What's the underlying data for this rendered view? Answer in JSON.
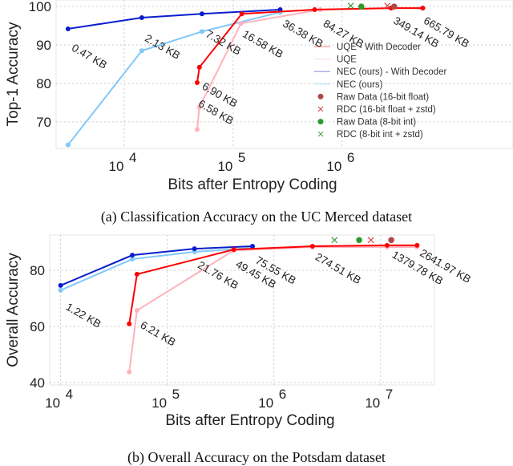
{
  "chart_data": [
    {
      "type": "line",
      "caption": "(a) Classification Accuracy on the UC Merced dataset",
      "xlabel": "Bits after Entropy Coding",
      "ylabel": "Top-1 Accuracy",
      "xscale": "log",
      "xlim": [
        2370,
        37000000
      ],
      "ylim": [
        63.1,
        101.7
      ],
      "xticks": [
        {
          "v": 10000,
          "label": "10",
          "exp": "4"
        },
        {
          "v": 100000,
          "label": "10",
          "exp": "5"
        },
        {
          "v": 1000000,
          "label": "10",
          "exp": "6"
        }
      ],
      "yticks": [
        70,
        80,
        90,
        100
      ],
      "grid": true,
      "legend_position": "right",
      "series": [
        {
          "name": "UQE - With Decoder",
          "color": "#ff0000",
          "x": [
            46700,
            49000,
            120000,
            560000,
            2800000,
            5500000
          ],
          "y": [
            80.2,
            84.2,
            98.1,
            99.2,
            99.6,
            99.6
          ]
        },
        {
          "name": "UQE",
          "color": "#ffb3bd",
          "x": [
            46700,
            49000,
            118000,
            630000,
            2850000,
            5400000
          ],
          "y": [
            68.0,
            73.8,
            95.6,
            99.2,
            99.6,
            99.6
          ]
        },
        {
          "name": "NEC (ours) - With Decoder",
          "color": "#0a1ecc",
          "x": [
            3050,
            14500,
            51700,
            270000
          ],
          "y": [
            94.2,
            97.1,
            98.1,
            99.2
          ]
        },
        {
          "name": "NEC (ours)",
          "color": "#7fc8f8",
          "x": [
            3050,
            14500,
            51700,
            270000
          ],
          "y": [
            64.0,
            88.5,
            93.5,
            98.5
          ]
        }
      ],
      "markers": [
        {
          "name": "Raw Data (16-bit float)",
          "shape": "dot",
          "color": "#b04848",
          "x": 3000000,
          "y": 100.0
        },
        {
          "name": "RDC (16-bit float + zstd)",
          "shape": "x",
          "color": "#d04848",
          "x": 2600000,
          "y": 100.2
        },
        {
          "name": "Raw Data (8-bit int)",
          "shape": "dot",
          "color": "#2e9a2e",
          "x": 1500000,
          "y": 100.0
        },
        {
          "name": "RDC (8-bit int + zstd)",
          "shape": "x",
          "color": "#3a9a3a",
          "x": 1200000,
          "y": 100.2
        }
      ],
      "annotations": [
        {
          "text": "0.47 KB",
          "x": 3240,
          "y": 90.8
        },
        {
          "text": "2.13 KB",
          "x": 15200,
          "y": 93.3
        },
        {
          "text": "7.32 KB",
          "x": 55000,
          "y": 94.4
        },
        {
          "text": "16.58 KB",
          "x": 120000,
          "y": 94.4
        },
        {
          "text": "36.38 KB",
          "x": 280000,
          "y": 97.1
        },
        {
          "text": "84.27 KB",
          "x": 660000,
          "y": 97.1
        },
        {
          "text": "349.14 KB",
          "x": 2900000,
          "y": 97.9
        },
        {
          "text": "665.79 KB",
          "x": 5500000,
          "y": 97.9
        },
        {
          "text": "6.90 KB",
          "x": 51000,
          "y": 80.8
        },
        {
          "text": "6.58 KB",
          "x": 47000,
          "y": 76.3
        }
      ]
    },
    {
      "type": "line",
      "caption": "(b) Overall Accuracy on the Potsdam dataset",
      "xlabel": "Bits after Entropy Coding",
      "ylabel": "Overall Accuracy",
      "xscale": "log",
      "xlim": [
        7900,
        32000000
      ],
      "ylim": [
        39.1,
        92.6
      ],
      "xticks": [
        {
          "v": 10000,
          "label": "10",
          "exp": "4"
        },
        {
          "v": 100000,
          "label": "10",
          "exp": "5"
        },
        {
          "v": 1000000,
          "label": "10",
          "exp": "6"
        },
        {
          "v": 10000000,
          "label": "10",
          "exp": "7"
        }
      ],
      "yticks": [
        40,
        60,
        80
      ],
      "grid": true,
      "series": [
        {
          "name": "UQE - With Decoder",
          "color": "#ff0000",
          "x": [
            44000,
            52000,
            420000,
            2300000,
            11500000,
            22000000
          ],
          "y": [
            60.9,
            78.6,
            87.4,
            88.6,
            88.9,
            88.9
          ]
        },
        {
          "name": "UQE",
          "color": "#ffb3bd",
          "x": [
            44000,
            52000,
            420000,
            2300000,
            11500000,
            22000000
          ],
          "y": [
            43.7,
            65.7,
            87.1,
            88.3,
            88.3,
            88.3
          ]
        },
        {
          "name": "NEC (ours) - With Decoder",
          "color": "#0a1ecc",
          "x": [
            10000,
            47000,
            180000,
            630000
          ],
          "y": [
            74.6,
            85.4,
            87.7,
            88.6
          ]
        },
        {
          "name": "NEC (ours)",
          "color": "#7fc8f8",
          "x": [
            10000,
            47000,
            180000,
            630000
          ],
          "y": [
            72.9,
            84.0,
            86.6,
            88.0
          ]
        }
      ],
      "markers": [
        {
          "name": "RDC (8-bit int + zstd)",
          "shape": "x",
          "color": "#3a9a3a",
          "x": 3700000,
          "y": 90.8
        },
        {
          "name": "Raw Data (8-bit int)",
          "shape": "dot",
          "color": "#2e9a2e",
          "x": 6300000,
          "y": 90.8
        },
        {
          "name": "RDC (16-bit float + zstd)",
          "shape": "x",
          "color": "#d04848",
          "x": 8100000,
          "y": 90.8
        },
        {
          "name": "Raw Data (16-bit float)",
          "shape": "dot",
          "color": "#b04848",
          "x": 12600000,
          "y": 90.8
        }
      ],
      "annotations": [
        {
          "text": "1.22 KB",
          "x": 11000,
          "y": 69.1
        },
        {
          "text": "6.21 KB",
          "x": 55000,
          "y": 62.6
        },
        {
          "text": "21.76 KB",
          "x": 190000,
          "y": 84.0
        },
        {
          "text": "49.45 KB",
          "x": 430000,
          "y": 84.3
        },
        {
          "text": "75.55 KB",
          "x": 660000,
          "y": 85.7
        },
        {
          "text": "274.51 KB",
          "x": 2400000,
          "y": 86.9
        },
        {
          "text": "1379.78 KB",
          "x": 12600000,
          "y": 87.7
        },
        {
          "text": "2641.97 KB",
          "x": 23000000,
          "y": 88.3
        }
      ]
    }
  ]
}
